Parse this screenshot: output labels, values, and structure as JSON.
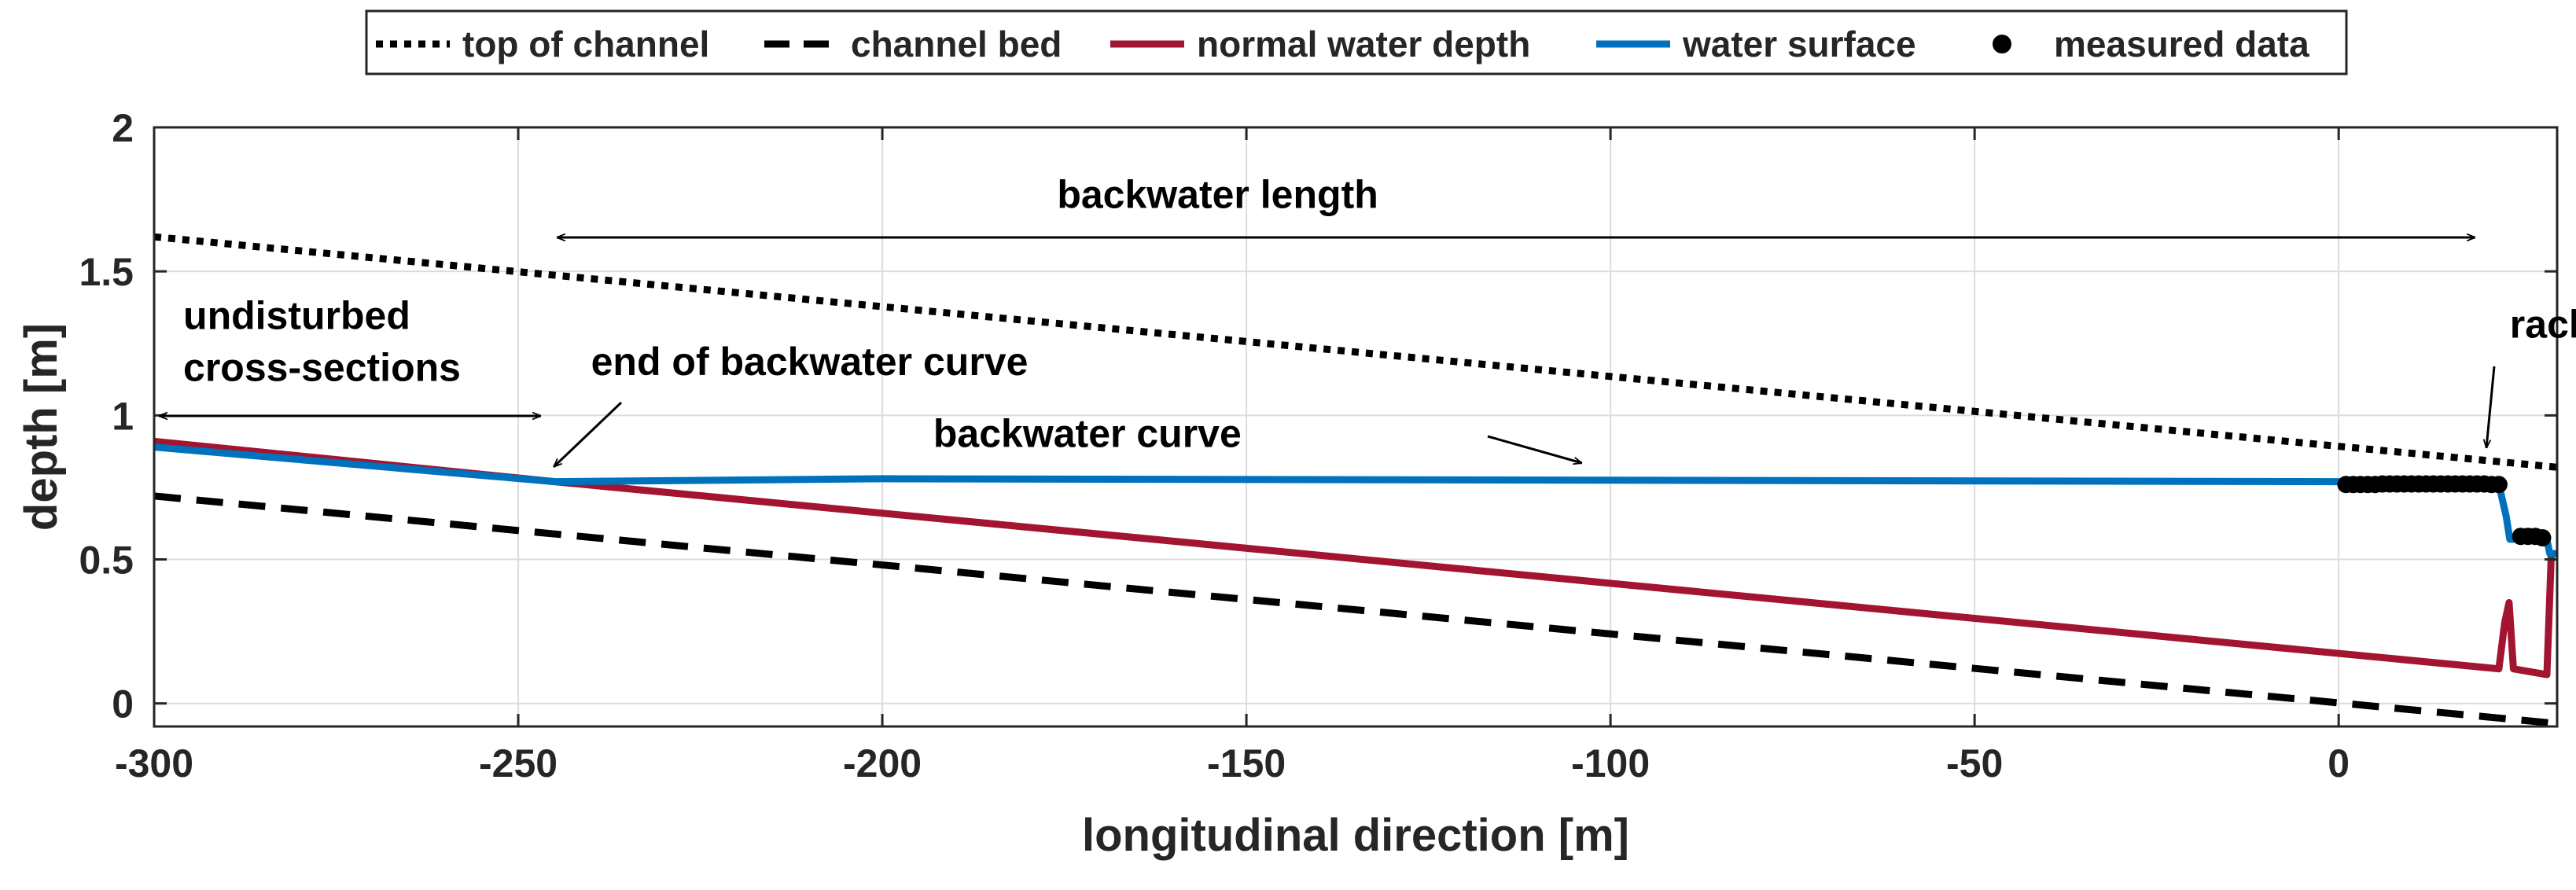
{
  "chart_data": {
    "type": "line",
    "title": "",
    "xlabel": "longitudinal direction [m]",
    "ylabel": "depth [m]",
    "xlim": [
      -300,
      30
    ],
    "ylim": [
      -0.08,
      2
    ],
    "xticks": [
      -300,
      -250,
      -200,
      -150,
      -100,
      -50,
      0
    ],
    "yticks": [
      0,
      0.5,
      1,
      1.5,
      2
    ],
    "xtick_labels": [
      "-300",
      "-250",
      "-200",
      "-150",
      "-100",
      "-50",
      "0"
    ],
    "ytick_labels": [
      "0",
      "0.5",
      "1",
      "1.5",
      "2"
    ],
    "grid": true,
    "legend_position": "top-outside",
    "series": [
      {
        "name": "top of channel",
        "style": "dotted",
        "color": "#000000",
        "x": [
          -300,
          30
        ],
        "y": [
          1.62,
          0.82
        ]
      },
      {
        "name": "channel bed",
        "style": "dashed",
        "color": "#000000",
        "x": [
          -300,
          30
        ],
        "y": [
          0.72,
          -0.07
        ]
      },
      {
        "name": "normal water depth",
        "style": "solid",
        "color": "#A2142F",
        "x": [
          -300,
          -245,
          22,
          22.8,
          23.4,
          24,
          28.6,
          29.2,
          30
        ],
        "y": [
          0.91,
          0.77,
          0.12,
          0.28,
          0.35,
          0.12,
          0.1,
          0.52,
          0.52
        ]
      },
      {
        "name": "water surface",
        "style": "solid",
        "color": "#0072BD",
        "x": [
          -300,
          -245,
          -200,
          -100,
          0,
          20,
          22,
          23,
          23.5,
          24,
          26,
          27.5,
          28.5,
          29,
          30
        ],
        "y": [
          0.89,
          0.77,
          0.78,
          0.775,
          0.77,
          0.77,
          0.76,
          0.65,
          0.57,
          0.57,
          0.59,
          0.58,
          0.58,
          0.52,
          0.52
        ]
      },
      {
        "name": "measured data",
        "style": "marker",
        "color": "#000000",
        "x": [
          1,
          2,
          3,
          4,
          5,
          6,
          7,
          8,
          9,
          10,
          11,
          12,
          13,
          14,
          15,
          16,
          17,
          18,
          19,
          20,
          21,
          22,
          25,
          26,
          27,
          28
        ],
        "y": [
          0.76,
          0.76,
          0.76,
          0.76,
          0.76,
          0.762,
          0.762,
          0.762,
          0.762,
          0.762,
          0.762,
          0.762,
          0.762,
          0.762,
          0.762,
          0.762,
          0.762,
          0.762,
          0.762,
          0.762,
          0.76,
          0.76,
          0.58,
          0.58,
          0.58,
          0.575
        ]
      }
    ],
    "annotations": [
      {
        "text": "backwater length",
        "x": -176,
        "y": 1.72
      },
      {
        "text": "undisturbed",
        "x": -296,
        "y": 1.3
      },
      {
        "text": "cross-sections",
        "x": -296,
        "y": 1.12
      },
      {
        "text": "end of backwater curve",
        "x": -240,
        "y": 1.14
      },
      {
        "text": "backwater curve",
        "x": -193,
        "y": 0.89
      },
      {
        "text": "rack",
        "x": 23.5,
        "y": 1.27
      }
    ]
  }
}
